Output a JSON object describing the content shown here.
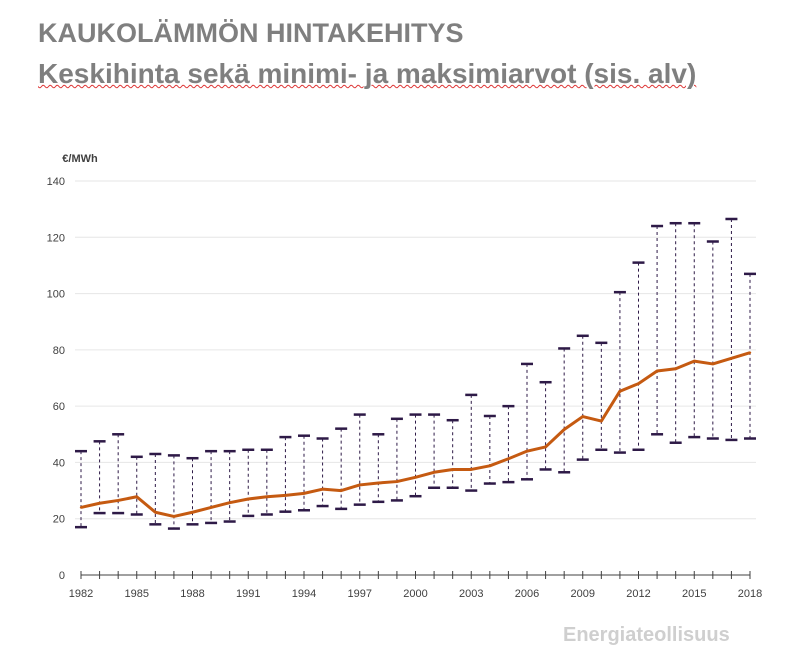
{
  "chart_data": {
    "type": "line",
    "title": "KAUKOLÄMMÖN HINTAKEHITYS",
    "subtitle": "Keskihinta sekä minimi- ja maksimiarvot (sis. alv)",
    "ylabel": "€/MWh",
    "xlabel": "",
    "ylim": [
      0,
      140
    ],
    "yticks": [
      "0",
      "20",
      "40",
      "60",
      "80",
      "100",
      "120",
      "140"
    ],
    "xticks": [
      "1982",
      "1985",
      "1988",
      "1991",
      "1994",
      "1997",
      "2000",
      "2003",
      "2006",
      "2009",
      "2012",
      "2015",
      "2018"
    ],
    "x": [
      1982,
      1983,
      1984,
      1985,
      1986,
      1987,
      1988,
      1989,
      1990,
      1991,
      1992,
      1993,
      1994,
      1995,
      1996,
      1997,
      1998,
      1999,
      2000,
      2001,
      2002,
      2003,
      2004,
      2005,
      2006,
      2007,
      2008,
      2009,
      2010,
      2011,
      2012,
      2013,
      2014,
      2015,
      2016,
      2017,
      2018
    ],
    "series": [
      {
        "name": "Keskihinta",
        "color": "#c55a11",
        "values": [
          24,
          25.5,
          26.5,
          27.8,
          22.3,
          20.8,
          22.3,
          24,
          25.7,
          27,
          27.8,
          28.3,
          29,
          30.5,
          30,
          32,
          32.7,
          33.2,
          34.7,
          36.5,
          37.5,
          37.5,
          38.8,
          41.3,
          44,
          45.5,
          51.7,
          56.3,
          54.7,
          65.3,
          68,
          72.5,
          73.3,
          76,
          75,
          77,
          79
        ]
      },
      {
        "name": "Maksimi",
        "color": "#2e1a47",
        "values": [
          44,
          47.5,
          50,
          42,
          43,
          42.5,
          41.5,
          44,
          44,
          44.5,
          44.5,
          49,
          49.5,
          48.5,
          52,
          57,
          50,
          55.5,
          57,
          57,
          55,
          64,
          56.5,
          60,
          75,
          68.5,
          80.5,
          85,
          82.5,
          100.5,
          111,
          124,
          125,
          125,
          118.5,
          126.5,
          107
        ]
      },
      {
        "name": "Minimi",
        "color": "#2e1a47",
        "values": [
          17,
          22,
          22,
          21.5,
          18,
          16.5,
          18,
          18.5,
          19,
          21,
          21.5,
          22.5,
          23,
          24.5,
          23.5,
          25,
          26,
          26.5,
          28,
          31,
          31,
          30,
          32.5,
          33,
          34,
          37.5,
          36.5,
          41,
          44.5,
          43.5,
          44.5,
          50,
          47,
          49,
          48.5,
          48,
          48.5
        ]
      }
    ],
    "grid": true
  },
  "logo": "Energiateollisuus"
}
